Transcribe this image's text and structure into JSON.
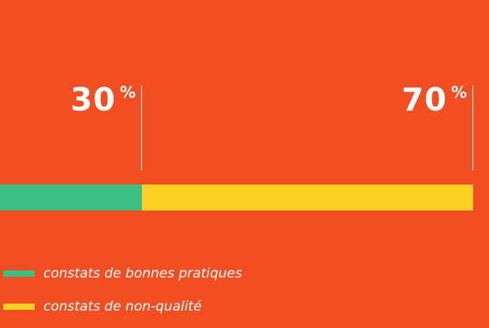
{
  "chart_data": {
    "type": "bar",
    "orientation": "horizontal-stacked",
    "categories": [
      ""
    ],
    "series": [
      {
        "name": "constats de bonnes pratiques",
        "values": [
          30
        ],
        "color": "#3DBE84"
      },
      {
        "name": "constats de non-qualité",
        "values": [
          70
        ],
        "color": "#FDD123"
      }
    ],
    "value_labels": [
      {
        "value": "30",
        "unit": "%"
      },
      {
        "value": "70",
        "unit": "%"
      }
    ],
    "xlim": [
      0,
      100
    ],
    "title": "",
    "xlabel": "",
    "ylabel": "",
    "grid": false,
    "legend_placement": "bottom-left"
  },
  "colors": {
    "background": "#F24E22",
    "text": "#FFFFFF"
  }
}
